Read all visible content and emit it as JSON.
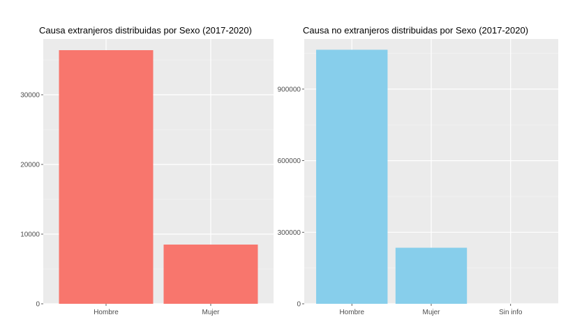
{
  "chart_data": [
    {
      "type": "bar",
      "title": "Causa extranjeros distribuidas por Sexo (2017-2020)",
      "xlabel": "",
      "ylabel": "",
      "categories": [
        "Hombre",
        "Mujer"
      ],
      "values": [
        36400,
        8500
      ],
      "ylim": [
        0,
        38000
      ],
      "yticks": [
        0,
        10000,
        20000,
        30000
      ],
      "ytick_labels": [
        "0",
        "10000",
        "20000",
        "30000"
      ],
      "bar_color": "#F8766D",
      "panel_background": "#EBEBEB",
      "grid": true,
      "legend": "none"
    },
    {
      "type": "bar",
      "title": "Causa no extranjeros distribuidas por Sexo (2017-2020)",
      "xlabel": "",
      "ylabel": "",
      "categories": [
        "Hombre",
        "Mujer",
        "Sin info"
      ],
      "values": [
        1065000,
        235000,
        0
      ],
      "ylim": [
        0,
        1110000
      ],
      "yticks": [
        0,
        300000,
        600000,
        900000
      ],
      "ytick_labels": [
        "0",
        "300000",
        "600000",
        "900000"
      ],
      "bar_color": "#87CEEB",
      "panel_background": "#EBEBEB",
      "grid": true,
      "legend": "none"
    }
  ]
}
